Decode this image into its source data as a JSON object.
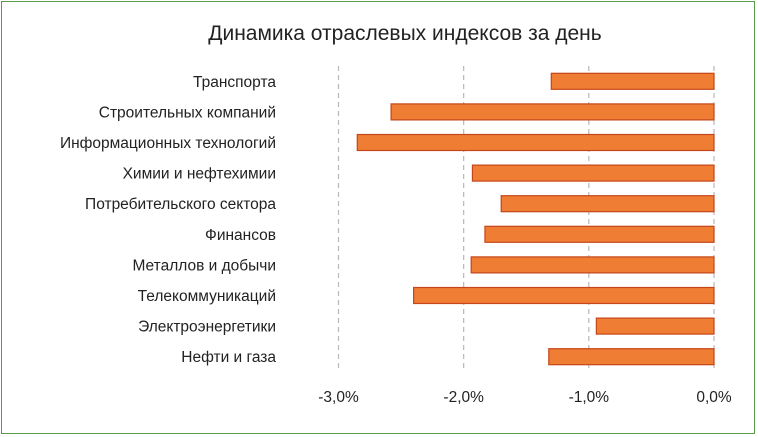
{
  "chart_data": {
    "type": "bar",
    "orientation": "horizontal",
    "title": "Динамика отраслевых индексов за день",
    "categories": [
      "Транспорта",
      "Строительных компаний",
      "Информационных технологий",
      "Химии и нефтехимии",
      "Потребительского сектора",
      "Финансов",
      "Металлов и добычи",
      "Телекоммуникаций",
      "Электроэнергетики",
      "Нефти и газа"
    ],
    "values": [
      -1.3,
      -2.58,
      -2.85,
      -1.93,
      -1.7,
      -1.83,
      -1.94,
      -2.4,
      -0.94,
      -1.32
    ],
    "xlim": [
      -3.0,
      0.0
    ],
    "ticks": [
      -3.0,
      -2.0,
      -1.0,
      0.0
    ],
    "tick_labels": [
      "-3,0%",
      "-2,0%",
      "-1,0%",
      "0,0%"
    ],
    "grid": "vertical dashed",
    "colors": {
      "bar_fill": "#ef7d33",
      "bar_border": "#c5461a",
      "grid": "#b8b8b8",
      "frame": "#5a9a4a"
    }
  }
}
